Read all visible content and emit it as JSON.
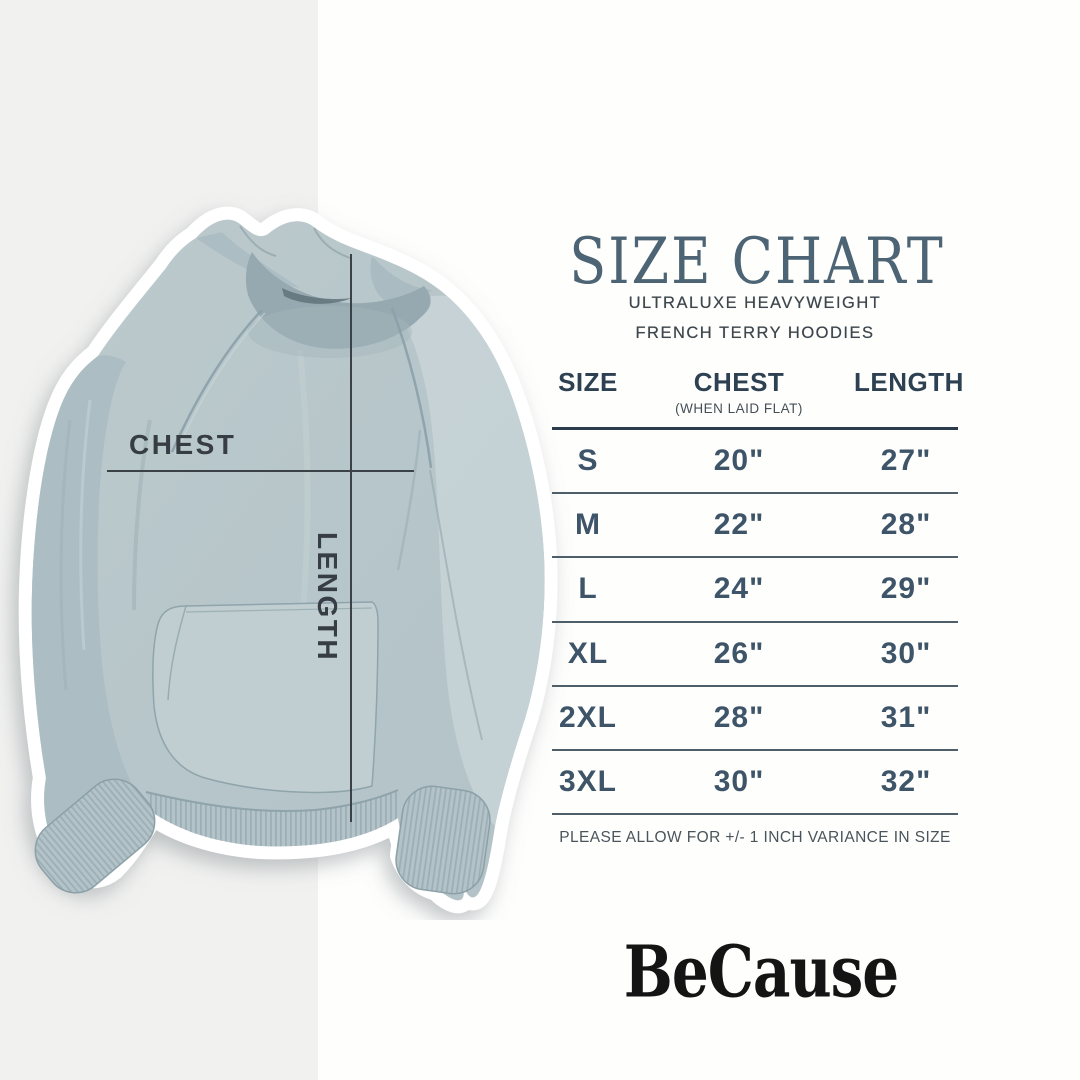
{
  "page": {
    "background_color": "#fefefd",
    "left_band_color": "#f1f1f0"
  },
  "product_diagram": {
    "image_alt": "pale sage-blue french terry hoodie shown flat with measurement guides",
    "chest_label": "CHEST",
    "length_label": "LENGTH",
    "line_color": "#3a4147",
    "hoodie_base_color": "#b7c6ca"
  },
  "header": {
    "title": "SIZE CHART",
    "subtitle_line1": "ULTRALUXE HEAVYWEIGHT",
    "subtitle_line2": "FRENCH TERRY HOODIES"
  },
  "size_table": {
    "columns": [
      "SIZE",
      "CHEST",
      "LENGTH"
    ],
    "chest_subnote": "(WHEN LAID FLAT)",
    "rows": [
      {
        "size": "S",
        "chest": "20\"",
        "length": "27\""
      },
      {
        "size": "M",
        "chest": "22\"",
        "length": "28\""
      },
      {
        "size": "L",
        "chest": "24\"",
        "length": "29\""
      },
      {
        "size": "XL",
        "chest": "26\"",
        "length": "30\""
      },
      {
        "size": "2XL",
        "chest": "28\"",
        "length": "31\""
      },
      {
        "size": "3XL",
        "chest": "30\"",
        "length": "32\""
      }
    ],
    "footnote": "PLEASE ALLOW FOR +/- 1 INCH VARIANCE IN SIZE"
  },
  "brand": {
    "logo_text": "BeCause"
  },
  "colors": {
    "title_text": "#4c6474",
    "subtitle_text": "#3d464d",
    "table_header_text": "#2d4152",
    "table_value_text": "#3e5468",
    "rule_dark": "#2b3d4d",
    "rule_light": "#4e5f6a",
    "annotation_text": "#363d44",
    "logo_text": "#141414"
  },
  "chart_data": {
    "type": "table",
    "title": "SIZE CHART",
    "subtitle": "ULTRALUXE HEAVYWEIGHT FRENCH TERRY HOODIES",
    "columns": [
      "SIZE",
      "CHEST (WHEN LAID FLAT)",
      "LENGTH"
    ],
    "rows": [
      [
        "S",
        "20\"",
        "27\""
      ],
      [
        "M",
        "22\"",
        "28\""
      ],
      [
        "L",
        "24\"",
        "29\""
      ],
      [
        "XL",
        "26\"",
        "30\""
      ],
      [
        "2XL",
        "28\"",
        "31\""
      ],
      [
        "3XL",
        "30\"",
        "32\""
      ]
    ],
    "units": "inches",
    "note": "PLEASE ALLOW FOR +/- 1 INCH VARIANCE IN SIZE"
  }
}
